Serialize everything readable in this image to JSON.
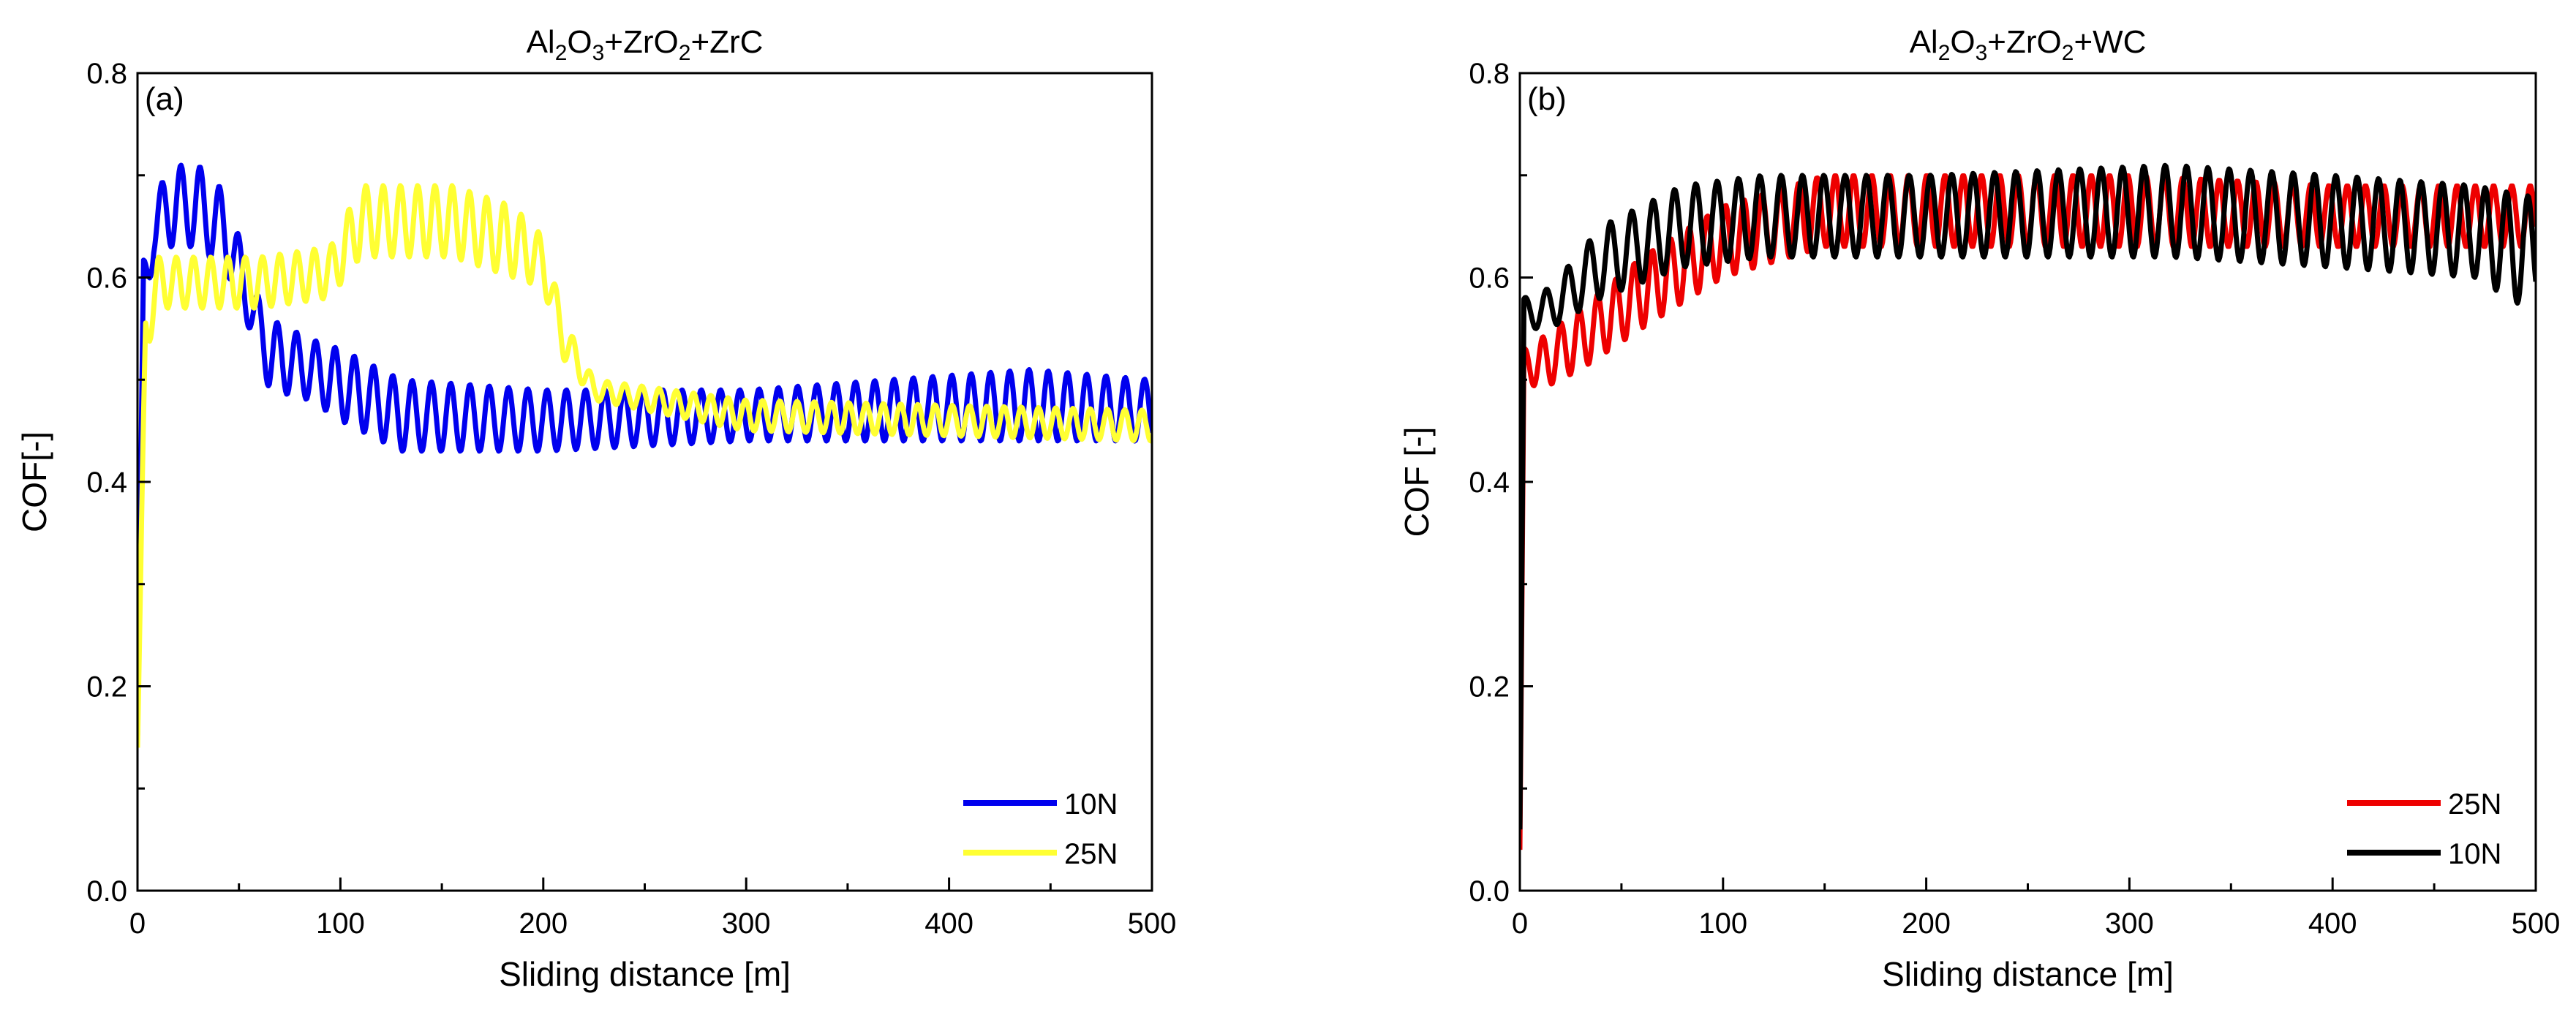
{
  "chart_data": [
    {
      "id": "a",
      "type": "line",
      "panel_label": "(a)",
      "title": {
        "parts": [
          {
            "text": "Al"
          },
          {
            "text": "2",
            "sub": true
          },
          {
            "text": "O"
          },
          {
            "text": "3",
            "sub": true
          },
          {
            "text": "+ZrO"
          },
          {
            "text": "2",
            "sub": true
          },
          {
            "text": "+ZrC"
          }
        ],
        "full": "Al2O3+ZrO2+ZrC"
      },
      "xlabel": "Sliding distance [m]",
      "ylabel": "COF[-]",
      "xlim": [
        0,
        500
      ],
      "ylim": [
        0.0,
        0.8
      ],
      "xticks": [
        0,
        100,
        200,
        300,
        400,
        500
      ],
      "yticks": [
        0.0,
        0.2,
        0.4,
        0.6,
        0.8
      ],
      "ytick_labels": [
        "0.0",
        "0.2",
        "0.4",
        "0.6",
        "0.8"
      ],
      "legend_position": "bottom-right",
      "series": [
        {
          "name": "10N",
          "color": "#0000ee",
          "oscillation_period": 9.5,
          "key_points": [
            {
              "x": 0,
              "lo": 0.15,
              "hi": 0.15
            },
            {
              "x": 3,
              "lo": 0.55,
              "hi": 0.62
            },
            {
              "x": 8,
              "lo": 0.62,
              "hi": 0.67
            },
            {
              "x": 15,
              "lo": 0.63,
              "hi": 0.71
            },
            {
              "x": 30,
              "lo": 0.63,
              "hi": 0.71
            },
            {
              "x": 45,
              "lo": 0.6,
              "hi": 0.68
            },
            {
              "x": 55,
              "lo": 0.55,
              "hi": 0.6
            },
            {
              "x": 65,
              "lo": 0.49,
              "hi": 0.56
            },
            {
              "x": 85,
              "lo": 0.48,
              "hi": 0.54
            },
            {
              "x": 100,
              "lo": 0.46,
              "hi": 0.53
            },
            {
              "x": 130,
              "lo": 0.43,
              "hi": 0.5
            },
            {
              "x": 200,
              "lo": 0.43,
              "hi": 0.49
            },
            {
              "x": 300,
              "lo": 0.44,
              "hi": 0.49
            },
            {
              "x": 440,
              "lo": 0.44,
              "hi": 0.51
            },
            {
              "x": 500,
              "lo": 0.44,
              "hi": 0.5
            }
          ]
        },
        {
          "name": "25N",
          "color": "#ffff33",
          "oscillation_period": 8.5,
          "key_points": [
            {
              "x": 0,
              "lo": 0.14,
              "hi": 0.14
            },
            {
              "x": 4,
              "lo": 0.52,
              "hi": 0.58
            },
            {
              "x": 10,
              "lo": 0.57,
              "hi": 0.62
            },
            {
              "x": 60,
              "lo": 0.57,
              "hi": 0.62
            },
            {
              "x": 95,
              "lo": 0.58,
              "hi": 0.63
            },
            {
              "x": 110,
              "lo": 0.62,
              "hi": 0.69
            },
            {
              "x": 155,
              "lo": 0.62,
              "hi": 0.69
            },
            {
              "x": 185,
              "lo": 0.6,
              "hi": 0.67
            },
            {
              "x": 200,
              "lo": 0.59,
              "hi": 0.64
            },
            {
              "x": 210,
              "lo": 0.52,
              "hi": 0.56
            },
            {
              "x": 225,
              "lo": 0.48,
              "hi": 0.5
            },
            {
              "x": 300,
              "lo": 0.45,
              "hi": 0.48
            },
            {
              "x": 500,
              "lo": 0.44,
              "hi": 0.47
            }
          ]
        }
      ]
    },
    {
      "id": "b",
      "type": "line",
      "panel_label": "(b)",
      "title": {
        "parts": [
          {
            "text": "Al"
          },
          {
            "text": "2",
            "sub": true
          },
          {
            "text": "O"
          },
          {
            "text": "3",
            "sub": true
          },
          {
            "text": "+ZrO"
          },
          {
            "text": "2",
            "sub": true
          },
          {
            "text": "+WC"
          }
        ],
        "full": "Al2O3+ZrO2+WC"
      },
      "xlabel": "Sliding distance [m]",
      "ylabel": "COF [-]",
      "xlim": [
        0,
        500
      ],
      "ylim": [
        0.0,
        0.8
      ],
      "xticks": [
        0,
        100,
        200,
        300,
        400,
        500
      ],
      "yticks": [
        0.0,
        0.2,
        0.4,
        0.6,
        0.8
      ],
      "ytick_labels": [
        "0.0",
        "0.2",
        "0.4",
        "0.6",
        "0.8"
      ],
      "legend_position": "bottom-right",
      "series": [
        {
          "name": "25N",
          "color": "#ee0000",
          "oscillation_period": 9.0,
          "key_points": [
            {
              "x": 0,
              "lo": 0.04,
              "hi": 0.04
            },
            {
              "x": 2,
              "lo": 0.5,
              "hi": 0.53
            },
            {
              "x": 10,
              "lo": 0.49,
              "hi": 0.54
            },
            {
              "x": 30,
              "lo": 0.51,
              "hi": 0.57
            },
            {
              "x": 60,
              "lo": 0.55,
              "hi": 0.62
            },
            {
              "x": 100,
              "lo": 0.6,
              "hi": 0.67
            },
            {
              "x": 150,
              "lo": 0.63,
              "hi": 0.7
            },
            {
              "x": 200,
              "lo": 0.63,
              "hi": 0.7
            },
            {
              "x": 300,
              "lo": 0.63,
              "hi": 0.7
            },
            {
              "x": 400,
              "lo": 0.63,
              "hi": 0.69
            },
            {
              "x": 500,
              "lo": 0.63,
              "hi": 0.69
            }
          ]
        },
        {
          "name": "10N",
          "color": "#000000",
          "oscillation_period": 10.5,
          "key_points": [
            {
              "x": 0,
              "lo": 0.06,
              "hi": 0.06
            },
            {
              "x": 2,
              "lo": 0.55,
              "hi": 0.58
            },
            {
              "x": 15,
              "lo": 0.55,
              "hi": 0.59
            },
            {
              "x": 40,
              "lo": 0.58,
              "hi": 0.65
            },
            {
              "x": 80,
              "lo": 0.61,
              "hi": 0.69
            },
            {
              "x": 120,
              "lo": 0.62,
              "hi": 0.7
            },
            {
              "x": 200,
              "lo": 0.62,
              "hi": 0.7
            },
            {
              "x": 320,
              "lo": 0.62,
              "hi": 0.71
            },
            {
              "x": 400,
              "lo": 0.61,
              "hi": 0.7
            },
            {
              "x": 470,
              "lo": 0.6,
              "hi": 0.69
            },
            {
              "x": 495,
              "lo": 0.57,
              "hi": 0.68
            },
            {
              "x": 500,
              "lo": 0.58,
              "hi": 0.68
            }
          ]
        }
      ]
    }
  ]
}
